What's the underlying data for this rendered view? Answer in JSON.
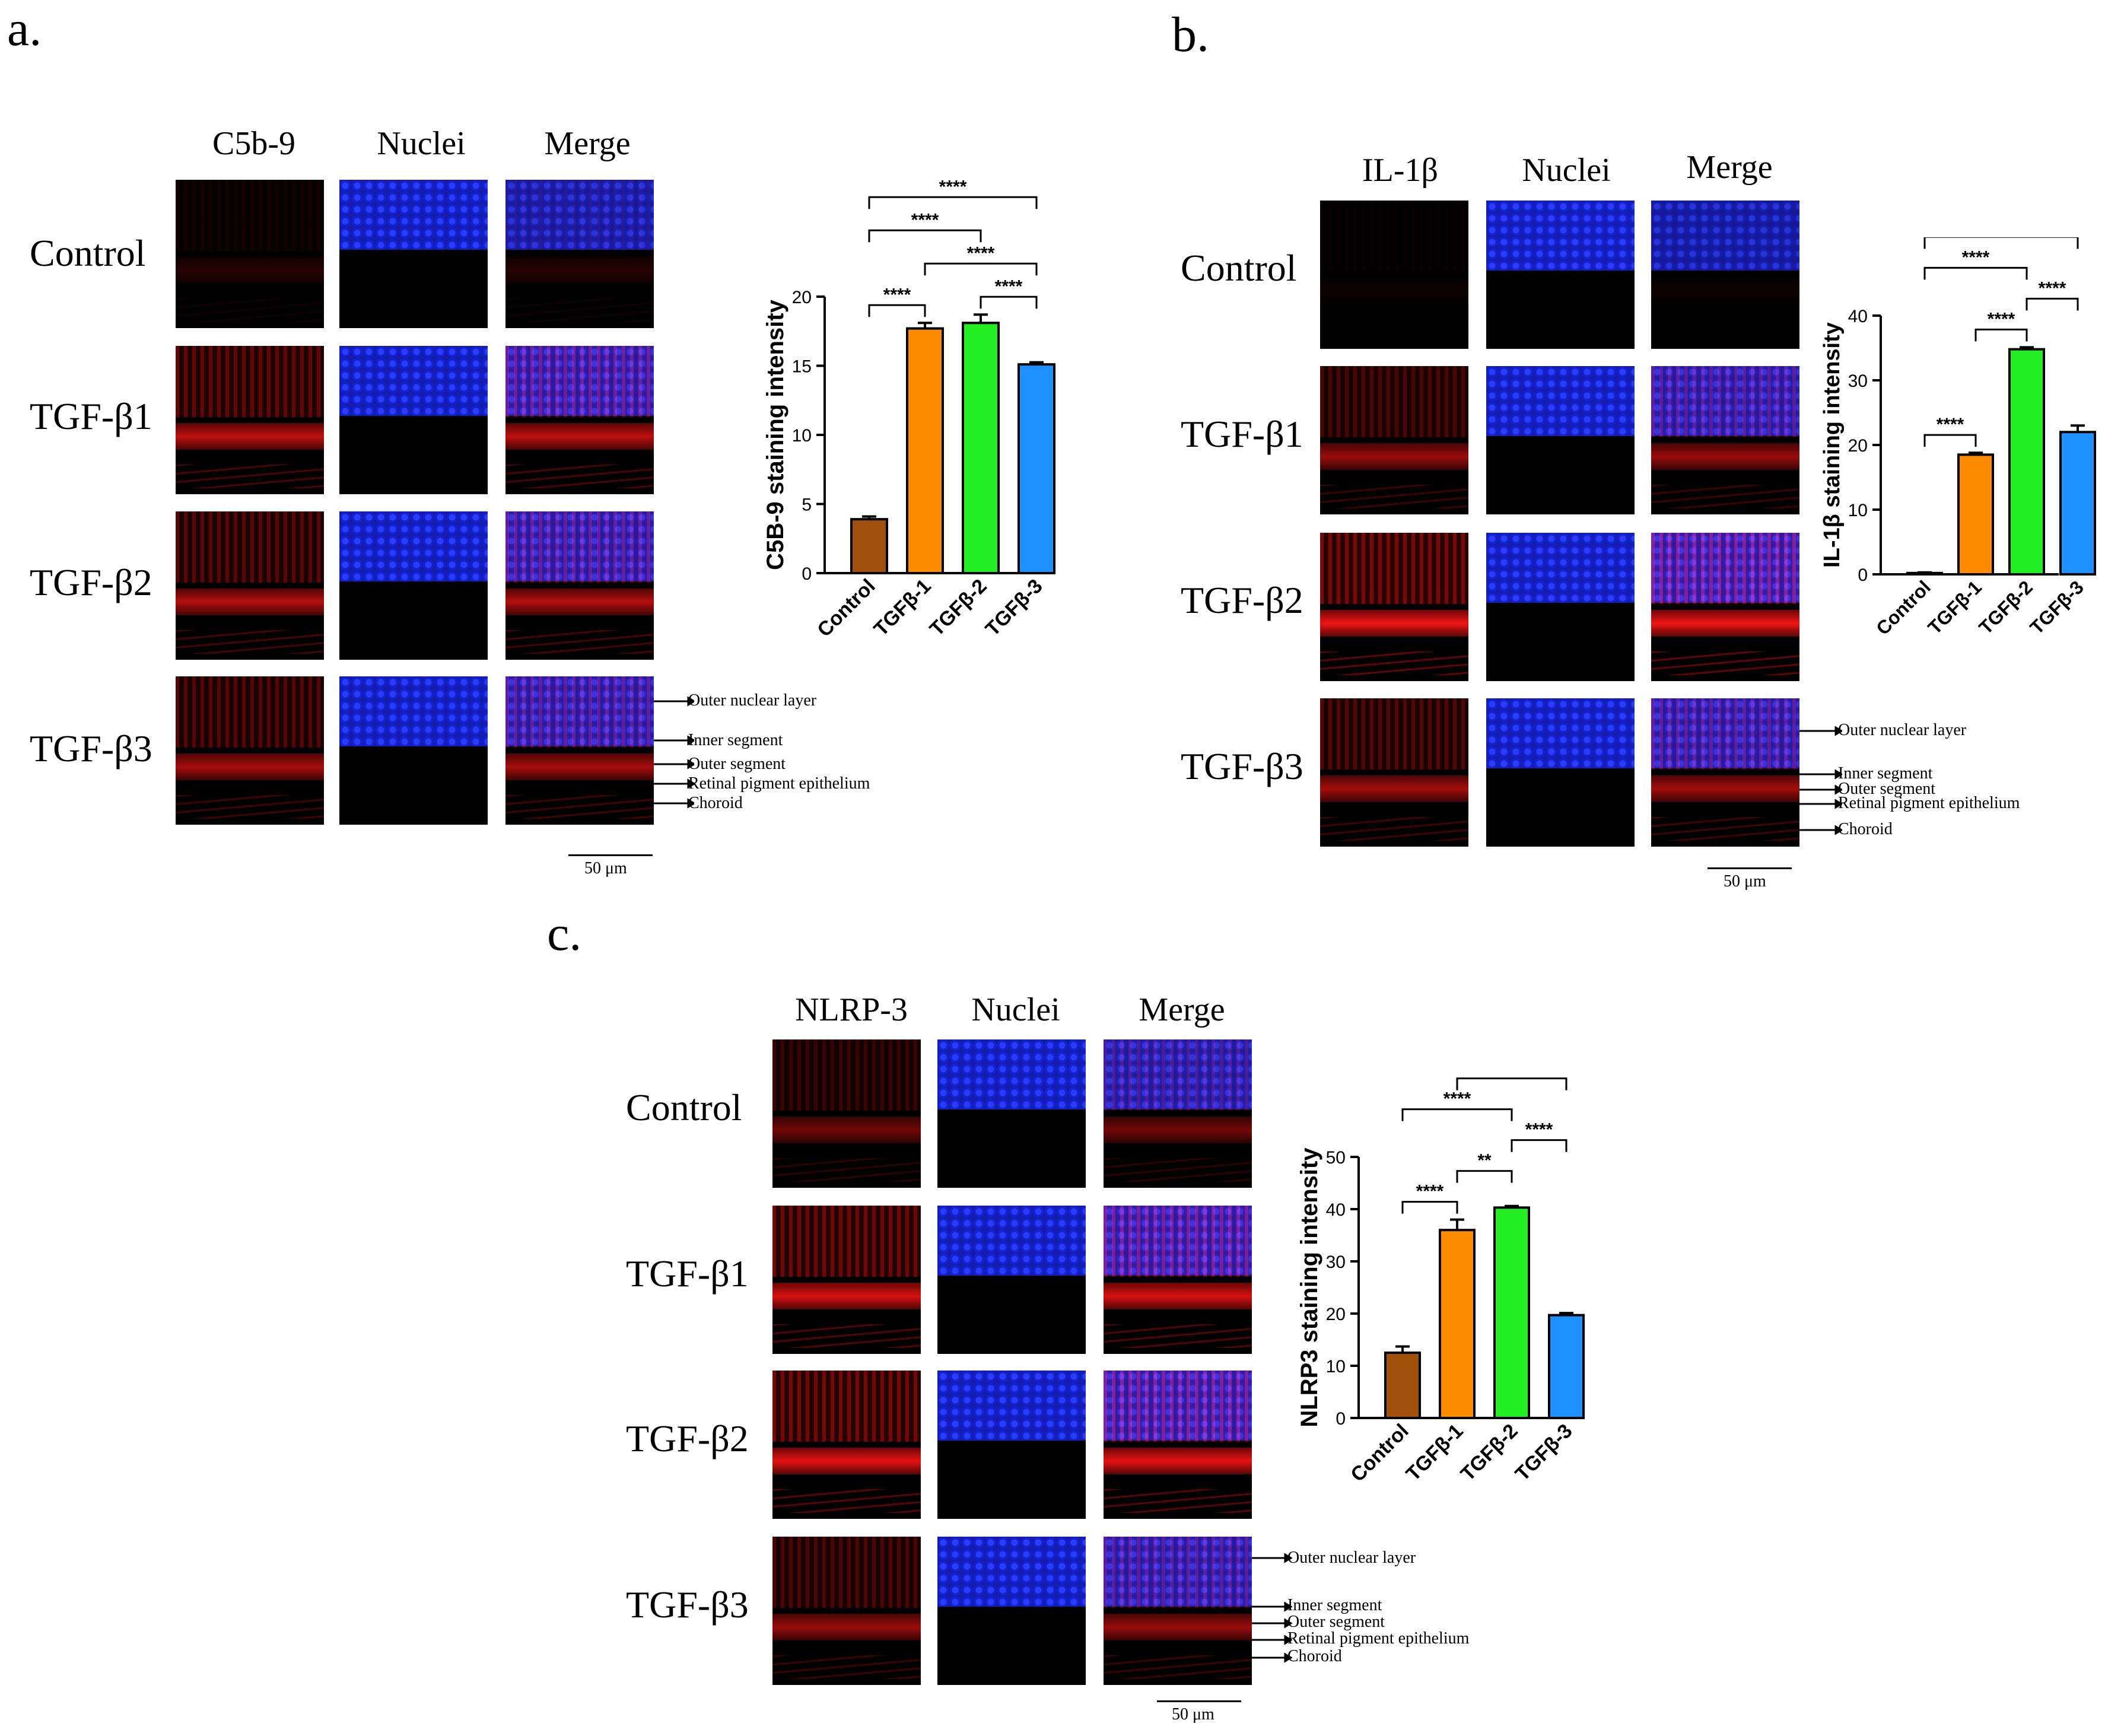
{
  "colors": {
    "control": "#A0500A",
    "tgfb1": "#FF8C00",
    "tgfb2": "#22EE22",
    "tgfb3": "#1E90FF",
    "stain_red": "#E81010",
    "nuclei_blue": "#1A2AE0"
  },
  "panels": [
    {
      "letter": "a.",
      "columns": [
        "C5b-9",
        "Nuclei",
        "Merge"
      ],
      "rows": [
        "Control",
        "TGF-β1",
        "TGF-β2",
        "TGF-β3"
      ],
      "layers": [
        "Outer nuclear layer",
        "Inner segment",
        "Outer segment",
        "Retinal pigment epithelium",
        "Choroid"
      ],
      "scale_bar": "50 μm",
      "stain_levels": [
        0.15,
        0.75,
        0.7,
        0.65
      ]
    },
    {
      "letter": "b.",
      "columns": [
        "IL-1β",
        "Nuclei",
        "Merge"
      ],
      "rows": [
        "Control",
        "TGF-β1",
        "TGF-β2",
        "TGF-β3"
      ],
      "layers": [
        "Outer nuclear layer",
        "Inner segment",
        "Outer segment",
        "Retinal pigment epithelium",
        "Choroid"
      ],
      "scale_bar": "50 μm",
      "stain_levels": [
        0.05,
        0.6,
        0.95,
        0.65
      ]
    },
    {
      "letter": "c.",
      "columns": [
        "NLRP-3",
        "Nuclei",
        "Merge"
      ],
      "rows": [
        "Control",
        "TGF-β1",
        "TGF-β2",
        "TGF-β3"
      ],
      "layers": [
        "Outer nuclear layer",
        "Inner segment",
        "Outer segment",
        "Retinal pigment epithelium",
        "Choroid"
      ],
      "scale_bar": "50 μm",
      "stain_levels": [
        0.45,
        0.85,
        0.9,
        0.6
      ]
    }
  ],
  "chart_data": [
    {
      "type": "bar",
      "categories": [
        "Control",
        "TGFβ-1",
        "TGFβ-2",
        "TGFβ-3"
      ],
      "values": [
        3.9,
        17.7,
        18.1,
        15.1
      ],
      "errors": [
        0.2,
        0.4,
        0.6,
        0.15
      ],
      "ylabel": "C5B-9 staining intensity",
      "ylim": [
        0,
        20
      ],
      "yticks": [
        0,
        5,
        10,
        15,
        20
      ],
      "significance": [
        {
          "from": 0,
          "to": 1,
          "label": "****"
        },
        {
          "from": 2,
          "to": 3,
          "label": "****"
        },
        {
          "from": 1,
          "to": 3,
          "label": "****"
        },
        {
          "from": 0,
          "to": 2,
          "label": "****"
        },
        {
          "from": 0,
          "to": 3,
          "label": "****"
        }
      ]
    },
    {
      "type": "bar",
      "categories": [
        "Control",
        "TGFβ-1",
        "TGFβ-2",
        "TGFβ-3"
      ],
      "values": [
        0.2,
        18.5,
        34.8,
        22.0
      ],
      "errors": [
        0.1,
        0.3,
        0.3,
        1.0
      ],
      "ylabel": "IL-1β staining intensity",
      "ylim": [
        0,
        40
      ],
      "yticks": [
        0,
        10,
        20,
        30,
        40
      ],
      "significance": [
        {
          "from": 0,
          "to": 1,
          "label": "****"
        },
        {
          "from": 1,
          "to": 2,
          "label": "****"
        },
        {
          "from": 2,
          "to": 3,
          "label": "****"
        },
        {
          "from": 0,
          "to": 2,
          "label": "****"
        },
        {
          "from": 0,
          "to": 3,
          "label": "****"
        }
      ]
    },
    {
      "type": "bar",
      "categories": [
        "Control",
        "TGFβ-1",
        "TGFβ-2",
        "TGFβ-3"
      ],
      "values": [
        12.5,
        36.0,
        40.3,
        19.7
      ],
      "errors": [
        1.2,
        2.0,
        0.3,
        0.4
      ],
      "ylabel": "NLRP3 staining intensity",
      "ylim": [
        0,
        50
      ],
      "yticks": [
        0,
        10,
        20,
        30,
        40,
        50
      ],
      "significance": [
        {
          "from": 0,
          "to": 1,
          "label": "****"
        },
        {
          "from": 1,
          "to": 2,
          "label": "**"
        },
        {
          "from": 2,
          "to": 3,
          "label": "****"
        },
        {
          "from": 0,
          "to": 2,
          "label": "****"
        },
        {
          "from": 1,
          "to": 3,
          "label": "****"
        },
        {
          "from": 0,
          "to": 3,
          "label": "****"
        }
      ]
    }
  ]
}
